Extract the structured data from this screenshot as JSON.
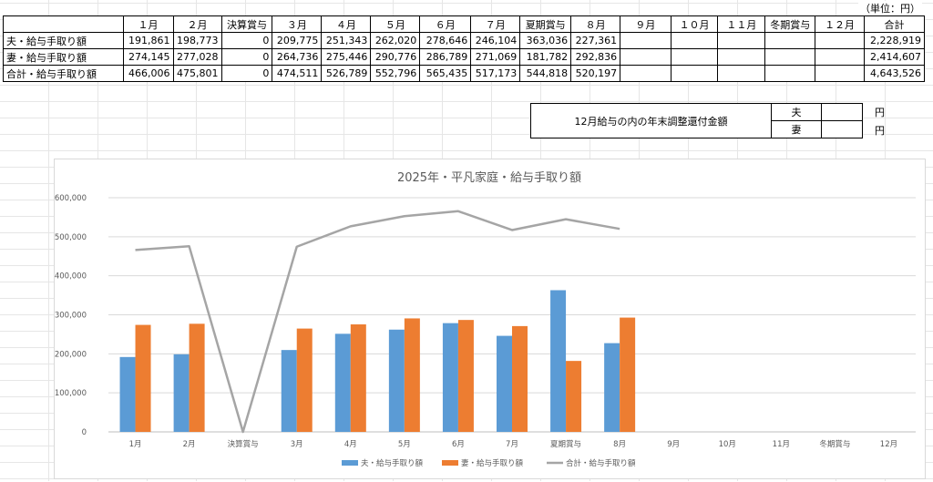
{
  "sheet": {
    "unit_label": "（単位：円）",
    "headers": [
      "",
      "１月",
      "２月",
      "決算賞与",
      "３月",
      "４月",
      "５月",
      "６月",
      "７月",
      "夏期賞与",
      "８月",
      "９月",
      "１０月",
      "１１月",
      "冬期賞与",
      "１２月",
      "合計"
    ],
    "rows": [
      {
        "label": "夫・給与手取り額",
        "cells": [
          "191,861",
          "198,773",
          "0",
          "209,775",
          "251,343",
          "262,020",
          "278,646",
          "246,104",
          "363,036",
          "227,361",
          "",
          "",
          "",
          "",
          ""
        ],
        "total": "2,228,919"
      },
      {
        "label": "妻・給与手取り額",
        "cells": [
          "274,145",
          "277,028",
          "0",
          "264,736",
          "275,446",
          "290,776",
          "286,789",
          "271,069",
          "181,782",
          "292,836",
          "",
          "",
          "",
          "",
          ""
        ],
        "total": "2,414,607"
      },
      {
        "label": "合計・給与手取り額",
        "cells": [
          "466,006",
          "475,801",
          "0",
          "474,511",
          "526,789",
          "552,796",
          "565,435",
          "517,173",
          "544,818",
          "520,197",
          "",
          "",
          "",
          "",
          ""
        ],
        "total": "4,643,526"
      }
    ],
    "refund": {
      "title": "12月給与の内の年末調整還付金額",
      "husband": "夫",
      "wife": "妻",
      "husband_value": "",
      "wife_value": "",
      "yen": "円"
    }
  },
  "chart_data": {
    "type": "bar",
    "title": "2025年・平凡家庭・給与手取り額",
    "categories": [
      "1月",
      "2月",
      "決算賞与",
      "3月",
      "4月",
      "5月",
      "6月",
      "7月",
      "夏期賞与",
      "8月",
      "9月",
      "10月",
      "11月",
      "冬期賞与",
      "12月"
    ],
    "series": [
      {
        "name": "夫・給与手取り額",
        "type": "bar",
        "color": "#5b9bd5",
        "values": [
          191861,
          198773,
          0,
          209775,
          251343,
          262020,
          278646,
          246104,
          363036,
          227361,
          null,
          null,
          null,
          null,
          null
        ]
      },
      {
        "name": "妻・給与手取り額",
        "type": "bar",
        "color": "#ed7d31",
        "values": [
          274145,
          277028,
          0,
          264736,
          275446,
          290776,
          286789,
          271069,
          181782,
          292836,
          null,
          null,
          null,
          null,
          null
        ]
      },
      {
        "name": "合計・給与手取り額",
        "type": "line",
        "color": "#a5a5a5",
        "values": [
          466006,
          475801,
          0,
          474511,
          526789,
          552796,
          565435,
          517173,
          544818,
          520197,
          null,
          null,
          null,
          null,
          null
        ]
      }
    ],
    "ylim": [
      0,
      600000
    ],
    "yticks": [
      0,
      100000,
      200000,
      300000,
      400000,
      500000,
      600000
    ],
    "ytick_labels": [
      "0",
      "100,000",
      "200,000",
      "300,000",
      "400,000",
      "500,000",
      "600,000"
    ],
    "grid": true,
    "legend_position": "bottom"
  }
}
